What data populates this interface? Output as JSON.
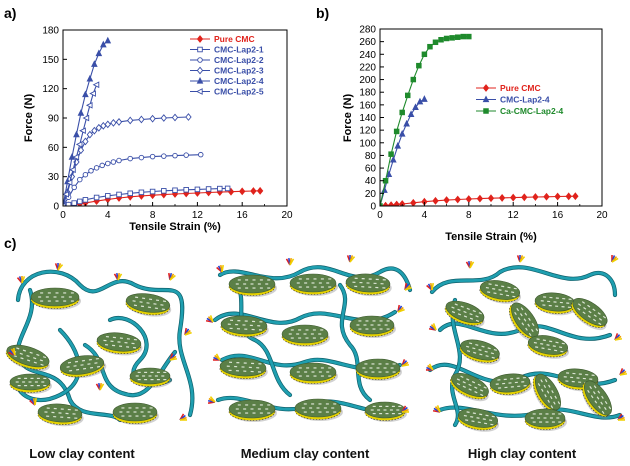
{
  "panel_labels": {
    "a": "a)",
    "b": "b)",
    "c": "c)"
  },
  "colors": {
    "pure_cmc": "#e0231c",
    "lap_series": "#3a4fa8",
    "ca_cmc": "#1f8a2c",
    "chain": "#1f9fb0",
    "clay_top": "#5b7f47",
    "clay_rim": "#e6d200"
  },
  "chart_data": [
    {
      "type": "line",
      "panel": "a)",
      "xlabel": "Tensile Strain (%)",
      "ylabel": "Force (N)",
      "xlim": [
        0,
        20
      ],
      "ylim": [
        0,
        180
      ],
      "xticks": [
        0,
        4,
        8,
        12,
        16,
        20
      ],
      "yticks": [
        0,
        30,
        60,
        90,
        120,
        150,
        180
      ],
      "grid": false,
      "legend_position": "top-right",
      "series": [
        {
          "name": "Pure CMC",
          "color": "#e0231c",
          "marker": "diamond-filled",
          "x": [
            0,
            0.5,
            1,
            1.5,
            2,
            3,
            4,
            5,
            6,
            7,
            8,
            9,
            10,
            11,
            12,
            13,
            14,
            15,
            16,
            17,
            17.6
          ],
          "y": [
            0,
            0.6,
            1.4,
            2.3,
            3.2,
            5,
            6.8,
            8.2,
            9.4,
            10.3,
            11,
            11.7,
            12.3,
            12.8,
            13.3,
            13.8,
            14.2,
            14.6,
            15,
            15.3,
            15.5
          ]
        },
        {
          "name": "CMC-Lap2-1",
          "color": "#3a4fa8",
          "marker": "square-open",
          "x": [
            0,
            0.5,
            1,
            1.5,
            2,
            3,
            4,
            5,
            6,
            7,
            8,
            9,
            10,
            11,
            12,
            13,
            14,
            14.7
          ],
          "y": [
            0,
            1.4,
            3,
            4.7,
            6.3,
            8.7,
            10.4,
            11.8,
            13,
            14,
            14.8,
            15.5,
            16.1,
            16.6,
            17,
            17.4,
            17.8,
            18
          ]
        },
        {
          "name": "CMC-Lap2-2",
          "color": "#3a4fa8",
          "marker": "circle-open",
          "x": [
            0,
            0.5,
            1,
            1.5,
            2,
            2.5,
            3,
            3.5,
            4,
            4.5,
            5,
            6,
            7,
            8,
            9,
            10,
            11,
            12.3
          ],
          "y": [
            0,
            9,
            19,
            27,
            32,
            36,
            39,
            41.5,
            43.5,
            45,
            46.5,
            48.5,
            49.5,
            50.5,
            51,
            51.5,
            52,
            52.5
          ]
        },
        {
          "name": "CMC-Lap2-3",
          "color": "#3a4fa8",
          "marker": "diamond-open",
          "x": [
            0,
            0.4,
            0.8,
            1.2,
            1.6,
            2,
            2.4,
            2.8,
            3.2,
            3.6,
            4,
            4.5,
            5,
            6,
            7,
            8,
            9,
            10,
            11.2
          ],
          "y": [
            0,
            14,
            30,
            45,
            57,
            66,
            73,
            77,
            80,
            82,
            83.5,
            85,
            86,
            87.5,
            88.5,
            89.3,
            90,
            90.5,
            91
          ]
        },
        {
          "name": "CMC-Lap2-4",
          "color": "#3a4fa8",
          "marker": "triangle-up-filled",
          "x": [
            0,
            0.4,
            0.8,
            1.2,
            1.6,
            2,
            2.4,
            2.8,
            3.2,
            3.6,
            4
          ],
          "y": [
            0,
            25,
            50,
            73,
            95,
            114,
            130,
            145,
            156,
            165,
            169
          ]
        },
        {
          "name": "CMC-Lap2-5",
          "color": "#3a4fa8",
          "marker": "triangle-left-open",
          "x": [
            0,
            0.3,
            0.6,
            0.9,
            1.2,
            1.5,
            1.8,
            2.1,
            2.4,
            2.7,
            3.0
          ],
          "y": [
            0,
            12,
            24,
            37,
            50,
            63,
            77,
            90,
            103,
            115,
            124
          ]
        }
      ]
    },
    {
      "type": "line",
      "panel": "b)",
      "xlabel": "Tensile Strain (%)",
      "ylabel": "Force (N)",
      "xlim": [
        0,
        20
      ],
      "ylim": [
        0,
        280
      ],
      "xticks": [
        0,
        4,
        8,
        12,
        16,
        20
      ],
      "yticks": [
        0,
        20,
        40,
        60,
        80,
        100,
        120,
        140,
        160,
        180,
        200,
        220,
        240,
        260,
        280
      ],
      "grid": false,
      "legend_position": "center-right",
      "series": [
        {
          "name": "Pure CMC",
          "color": "#e0231c",
          "marker": "diamond-filled",
          "x": [
            0,
            0.5,
            1,
            1.5,
            2,
            3,
            4,
            5,
            6,
            7,
            8,
            9,
            10,
            11,
            12,
            13,
            14,
            15,
            16,
            17,
            17.6
          ],
          "y": [
            0,
            0.6,
            1.4,
            2.3,
            3.2,
            5,
            6.8,
            8.2,
            9.4,
            10.3,
            11,
            11.7,
            12.3,
            12.8,
            13.3,
            13.8,
            14.2,
            14.6,
            15,
            15.3,
            15.5
          ]
        },
        {
          "name": "CMC-Lap2-4",
          "color": "#3a4fa8",
          "marker": "triangle-up-filled",
          "x": [
            0,
            0.4,
            0.8,
            1.2,
            1.6,
            2,
            2.4,
            2.8,
            3.2,
            3.6,
            4
          ],
          "y": [
            0,
            25,
            50,
            73,
            95,
            114,
            130,
            145,
            156,
            165,
            169
          ]
        },
        {
          "name": "Ca-CMC-Lap2-4",
          "color": "#1f8a2c",
          "marker": "square-filled",
          "x": [
            0,
            0.5,
            1,
            1.5,
            2,
            2.5,
            3,
            3.5,
            4,
            4.5,
            5,
            5.5,
            6,
            6.5,
            7,
            7.5,
            8
          ],
          "y": [
            0,
            40,
            82,
            118,
            148,
            175,
            200,
            222,
            240,
            252,
            259,
            263,
            265,
            266,
            267,
            268,
            268
          ]
        }
      ]
    }
  ],
  "schematic": {
    "panels": [
      {
        "caption": "Low clay content",
        "clay_density": "low"
      },
      {
        "caption": "Medium clay content",
        "clay_density": "medium"
      },
      {
        "caption": "High clay content",
        "clay_density": "high"
      }
    ]
  }
}
